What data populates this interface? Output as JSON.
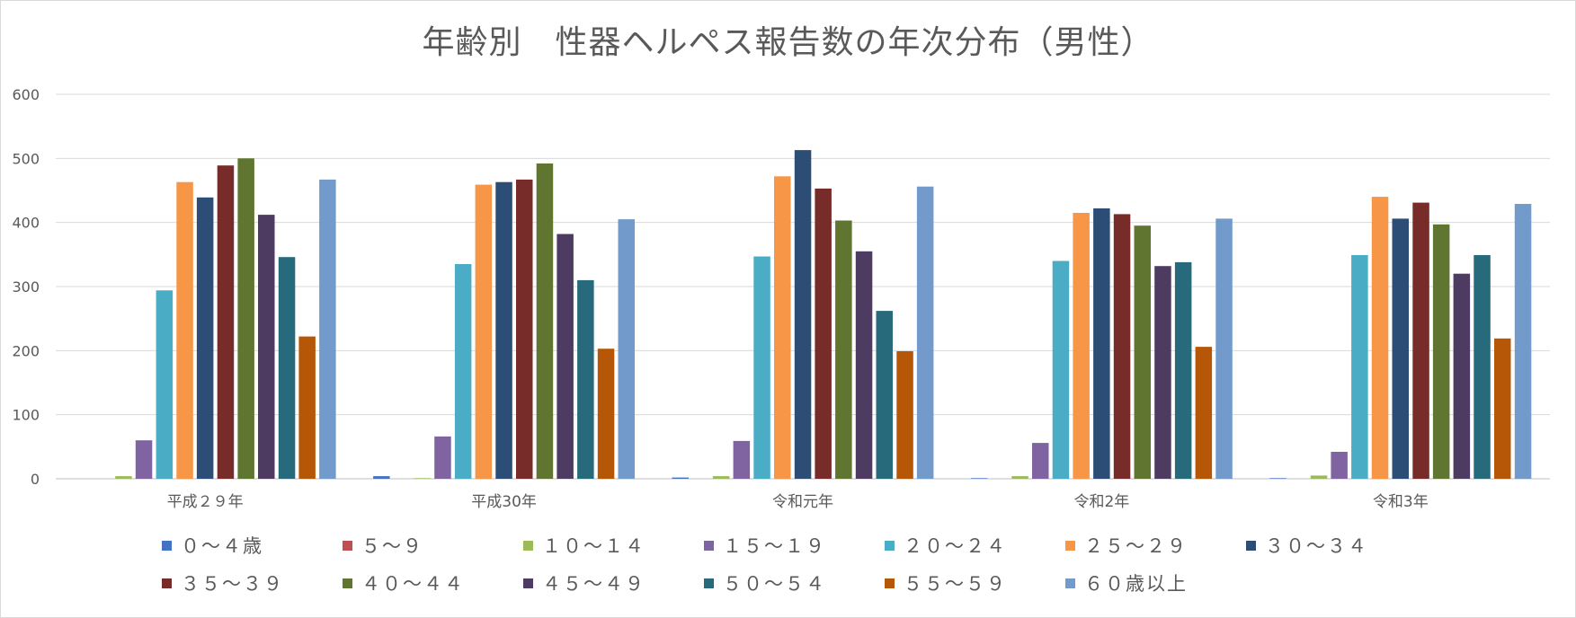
{
  "chart_data": {
    "type": "bar",
    "title": "年齢別　性器ヘルペス報告数の年次分布（男性）",
    "xlabel": "",
    "ylabel": "",
    "ylim": [
      0,
      600
    ],
    "yticks": [
      "0",
      "100",
      "200",
      "300",
      "400",
      "500",
      "600"
    ],
    "grid": true,
    "legend_position": "bottom",
    "categories": [
      "平成２９年",
      "平成30年",
      "令和元年",
      "令和2年",
      "令和3年"
    ],
    "series": [
      {
        "name": "０～４歳",
        "color": "#4472C4",
        "values": [
          0,
          4,
          2,
          1,
          1
        ]
      },
      {
        "name": "５～９",
        "color": "#C0504D",
        "values": [
          0,
          0,
          0,
          0,
          0
        ]
      },
      {
        "name": "１０～１４",
        "color": "#9BBB59",
        "values": [
          4,
          1,
          4,
          4,
          5
        ]
      },
      {
        "name": "１５～１９",
        "color": "#8064A2",
        "values": [
          60,
          66,
          59,
          56,
          42
        ]
      },
      {
        "name": "２０～２４",
        "color": "#4BACC6",
        "values": [
          294,
          335,
          347,
          340,
          349
        ]
      },
      {
        "name": "２５～２９",
        "color": "#F79646",
        "values": [
          463,
          459,
          472,
          415,
          440
        ]
      },
      {
        "name": "３０～３４",
        "color": "#2C4D75",
        "values": [
          439,
          463,
          513,
          422,
          406
        ]
      },
      {
        "name": "３５～３９",
        "color": "#772C2A",
        "values": [
          489,
          467,
          453,
          413,
          431
        ]
      },
      {
        "name": "４０～４４",
        "color": "#5F7530",
        "values": [
          500,
          492,
          403,
          395,
          397
        ]
      },
      {
        "name": "４５～４９",
        "color": "#4D3B62",
        "values": [
          412,
          382,
          355,
          332,
          320
        ]
      },
      {
        "name": "５０～５４",
        "color": "#276A7C",
        "values": [
          346,
          310,
          262,
          338,
          349
        ]
      },
      {
        "name": "５５～５９",
        "color": "#B65708",
        "values": [
          222,
          203,
          199,
          206,
          219
        ]
      },
      {
        "name": "６０歳以上",
        "color": "#729ACA",
        "values": [
          467,
          405,
          456,
          406,
          429
        ]
      }
    ]
  }
}
